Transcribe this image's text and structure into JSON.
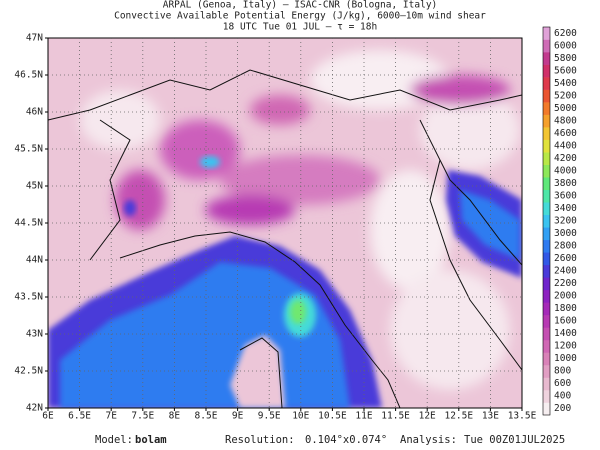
{
  "header": {
    "lines": [
      "ARPAL (Genoa, Italy)  —  ISAC-CNR (Bologna, Italy)",
      "Convective Available Potential Energy (J/kg), 6000–10m wind shear",
      "18 UTC Tue 01 JUL  —  τ = 18h"
    ]
  },
  "map": {
    "lon_ticks": [
      "6E",
      "6.5E",
      "7E",
      "7.5E",
      "8E",
      "8.5E",
      "9E",
      "9.5E",
      "10E",
      "10.5E",
      "11E",
      "11.5E",
      "12E",
      "12.5E",
      "13E",
      "13.5E"
    ],
    "lat_ticks": [
      "47N",
      "46.5N",
      "46N",
      "45.5N",
      "45N",
      "44.5N",
      "44N",
      "43.5N",
      "43N",
      "42.5N",
      "42N"
    ]
  },
  "colorbar": {
    "labels": [
      "200",
      "400",
      "600",
      "800",
      "1000",
      "1200",
      "1400",
      "1600",
      "1800",
      "2000",
      "2200",
      "2400",
      "2600",
      "2800",
      "3000",
      "3200",
      "3400",
      "3600",
      "3800",
      "4000",
      "4200",
      "4400",
      "4600",
      "4800",
      "5000",
      "5200",
      "5400",
      "5600",
      "5800",
      "6000",
      "6200"
    ],
    "colors": [
      "#f6eef0",
      "#efd3de",
      "#e8b9cf",
      "#e19ec3",
      "#d982b8",
      "#d068b4",
      "#c44fb2",
      "#b73ab3",
      "#a52ab8",
      "#8e22c0",
      "#6f25cc",
      "#4a3ad9",
      "#3258e6",
      "#2f7bf0",
      "#32a0f4",
      "#3bc3f0",
      "#45dbd8",
      "#4ee6a8",
      "#5fe87a",
      "#8de85a",
      "#b8e848",
      "#e0e23c",
      "#f2c532",
      "#f5a02c",
      "#f27a2a",
      "#ea5530",
      "#de3a4c",
      "#d0306a",
      "#c23a8e",
      "#cf6cb6",
      "#e0a2d8"
    ]
  },
  "footer": {
    "model_label": "Model:",
    "model": "bolam",
    "resolution_label": "Resolution:",
    "resolution": "0.104°x0.074°",
    "analysis_label": "Analysis:",
    "analysis": "Tue 00Z01JUL2025"
  }
}
